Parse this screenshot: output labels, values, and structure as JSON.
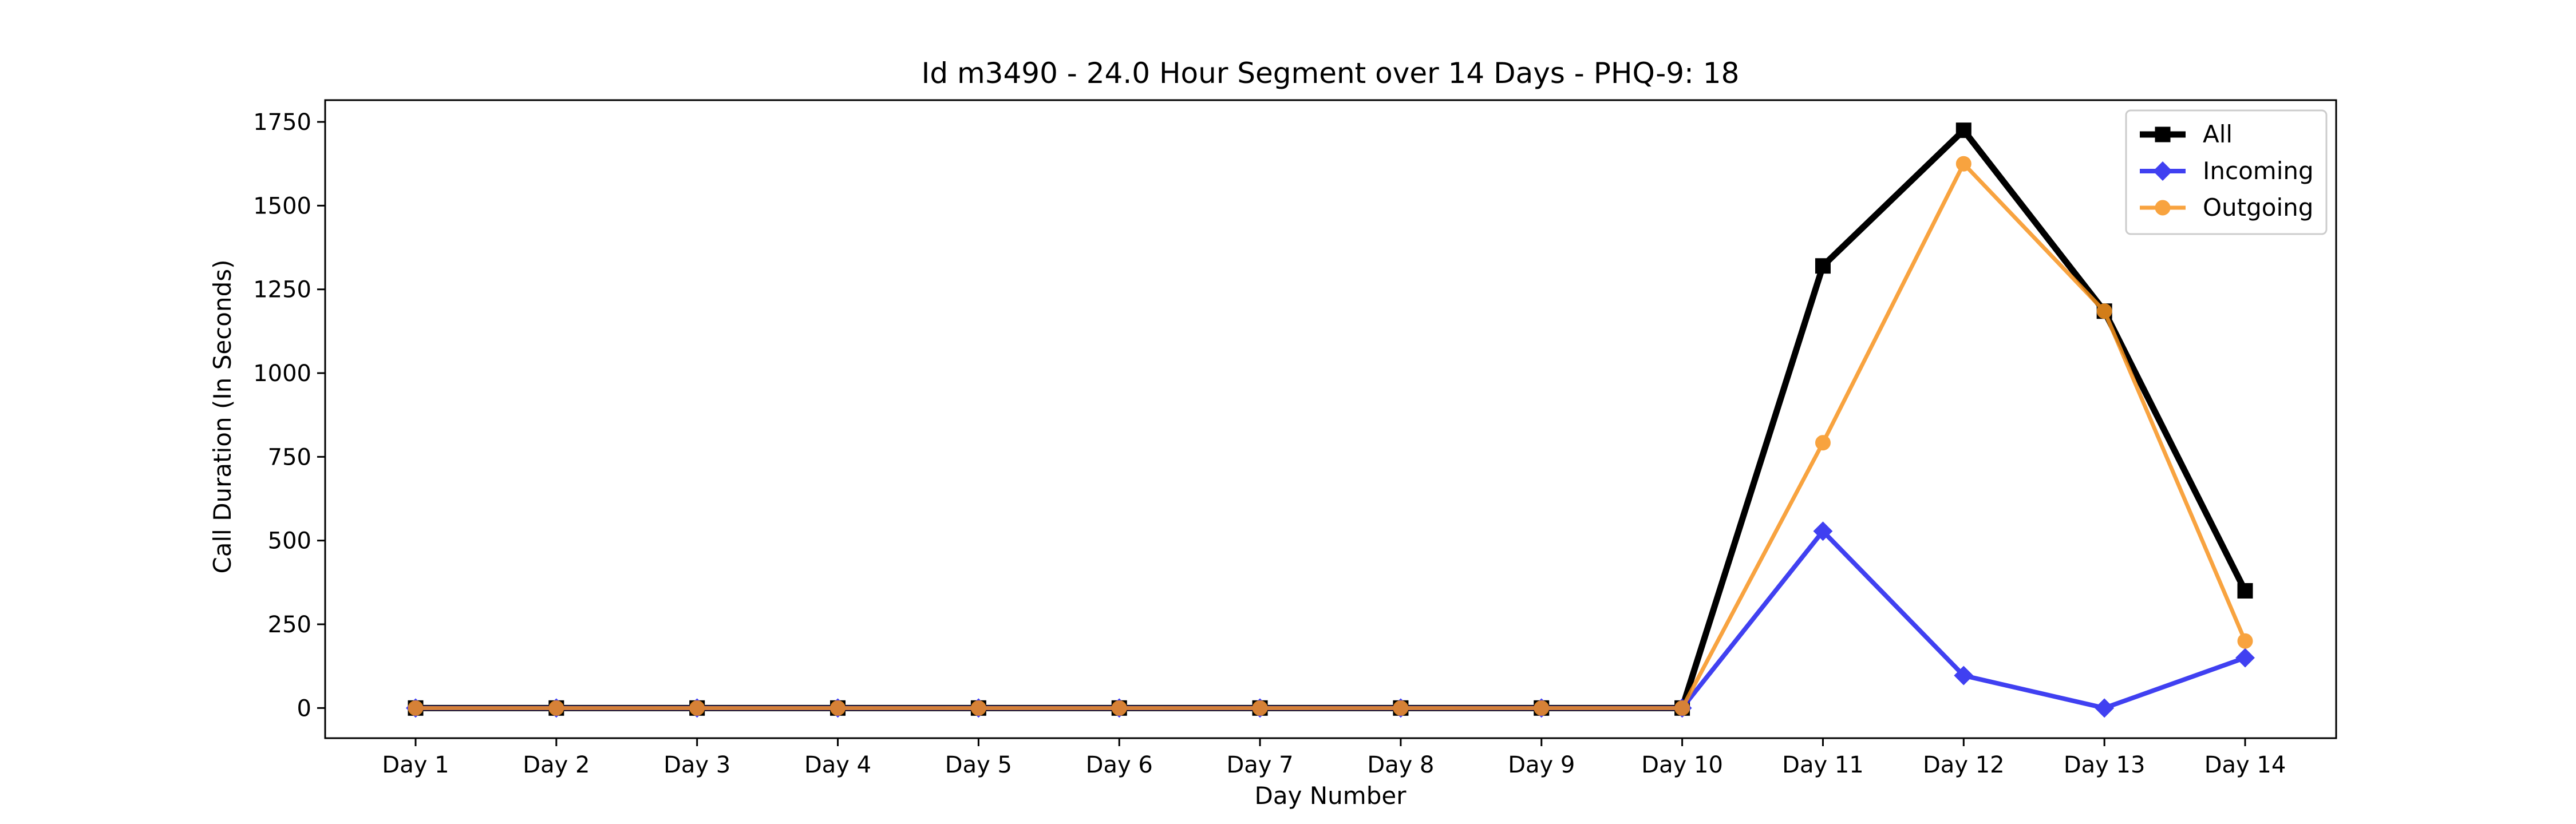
{
  "chart_data": {
    "type": "line",
    "title": "Id m3490 - 24.0 Hour Segment over 14 Days - PHQ-9: 18",
    "xlabel": "Day Number",
    "ylabel": "Call Duration (In Seconds)",
    "categories": [
      "Day 1",
      "Day 2",
      "Day 3",
      "Day 4",
      "Day 5",
      "Day 6",
      "Day 7",
      "Day 8",
      "Day 9",
      "Day 10",
      "Day 11",
      "Day 12",
      "Day 13",
      "Day 14"
    ],
    "y_ticks": [
      0,
      250,
      500,
      750,
      1000,
      1250,
      1500,
      1750
    ],
    "ylim": [
      -90,
      1815
    ],
    "grid": false,
    "legend_position": "top-right",
    "series": [
      {
        "name": "All",
        "color": "#000000",
        "marker": "square",
        "values": [
          0,
          0,
          0,
          0,
          0,
          0,
          0,
          0,
          0,
          0,
          1320,
          1725,
          1185,
          350
        ]
      },
      {
        "name": "Incoming",
        "color": "#1f1fef",
        "marker": "diamond",
        "values": [
          0,
          0,
          0,
          0,
          0,
          0,
          0,
          0,
          0,
          0,
          528,
          97,
          0,
          150
        ]
      },
      {
        "name": "Outgoing",
        "color": "#f7931e",
        "marker": "circle",
        "values": [
          0,
          0,
          0,
          0,
          0,
          0,
          0,
          0,
          0,
          0,
          792,
          1625,
          1185,
          200
        ]
      }
    ]
  }
}
